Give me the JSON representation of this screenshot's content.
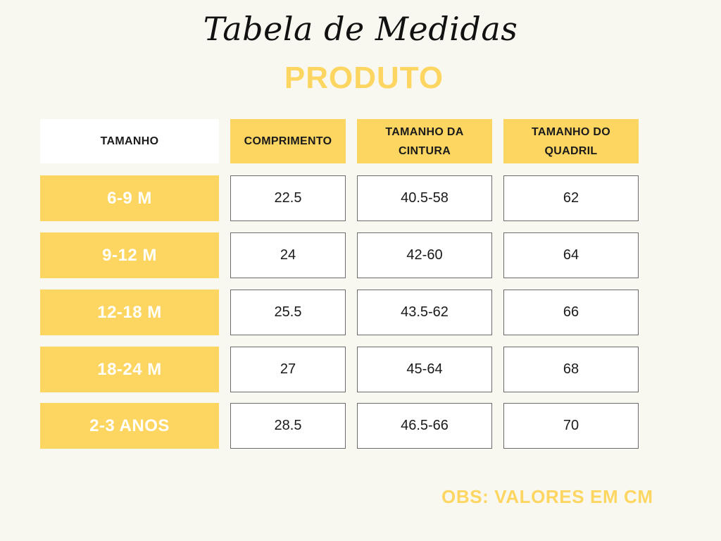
{
  "title": "Tabela de Medidas",
  "subtitle": "PRODUTO",
  "headers": [
    "TAMANHO",
    "COMPRIMENTO",
    "TAMANHO DA CINTURA",
    "TAMANHO DO QUADRIL"
  ],
  "rows": [
    {
      "size": "6-9 M",
      "comprimento": "22.5",
      "cintura": "40.5-58",
      "quadril": "62"
    },
    {
      "size": "9-12 M",
      "comprimento": "24",
      "cintura": "42-60",
      "quadril": "64"
    },
    {
      "size": "12-18 M",
      "comprimento": "25.5",
      "cintura": "43.5-62",
      "quadril": "66"
    },
    {
      "size": "18-24 M",
      "comprimento": "27",
      "cintura": "45-64",
      "quadril": "68"
    },
    {
      "size": "2-3 ANOS",
      "comprimento": "28.5",
      "cintura": "46.5-66",
      "quadril": "70"
    }
  ],
  "note": "OBS: VALORES EM CM",
  "colors": {
    "accent": "#fdd662",
    "background": "#f9f8f0"
  }
}
